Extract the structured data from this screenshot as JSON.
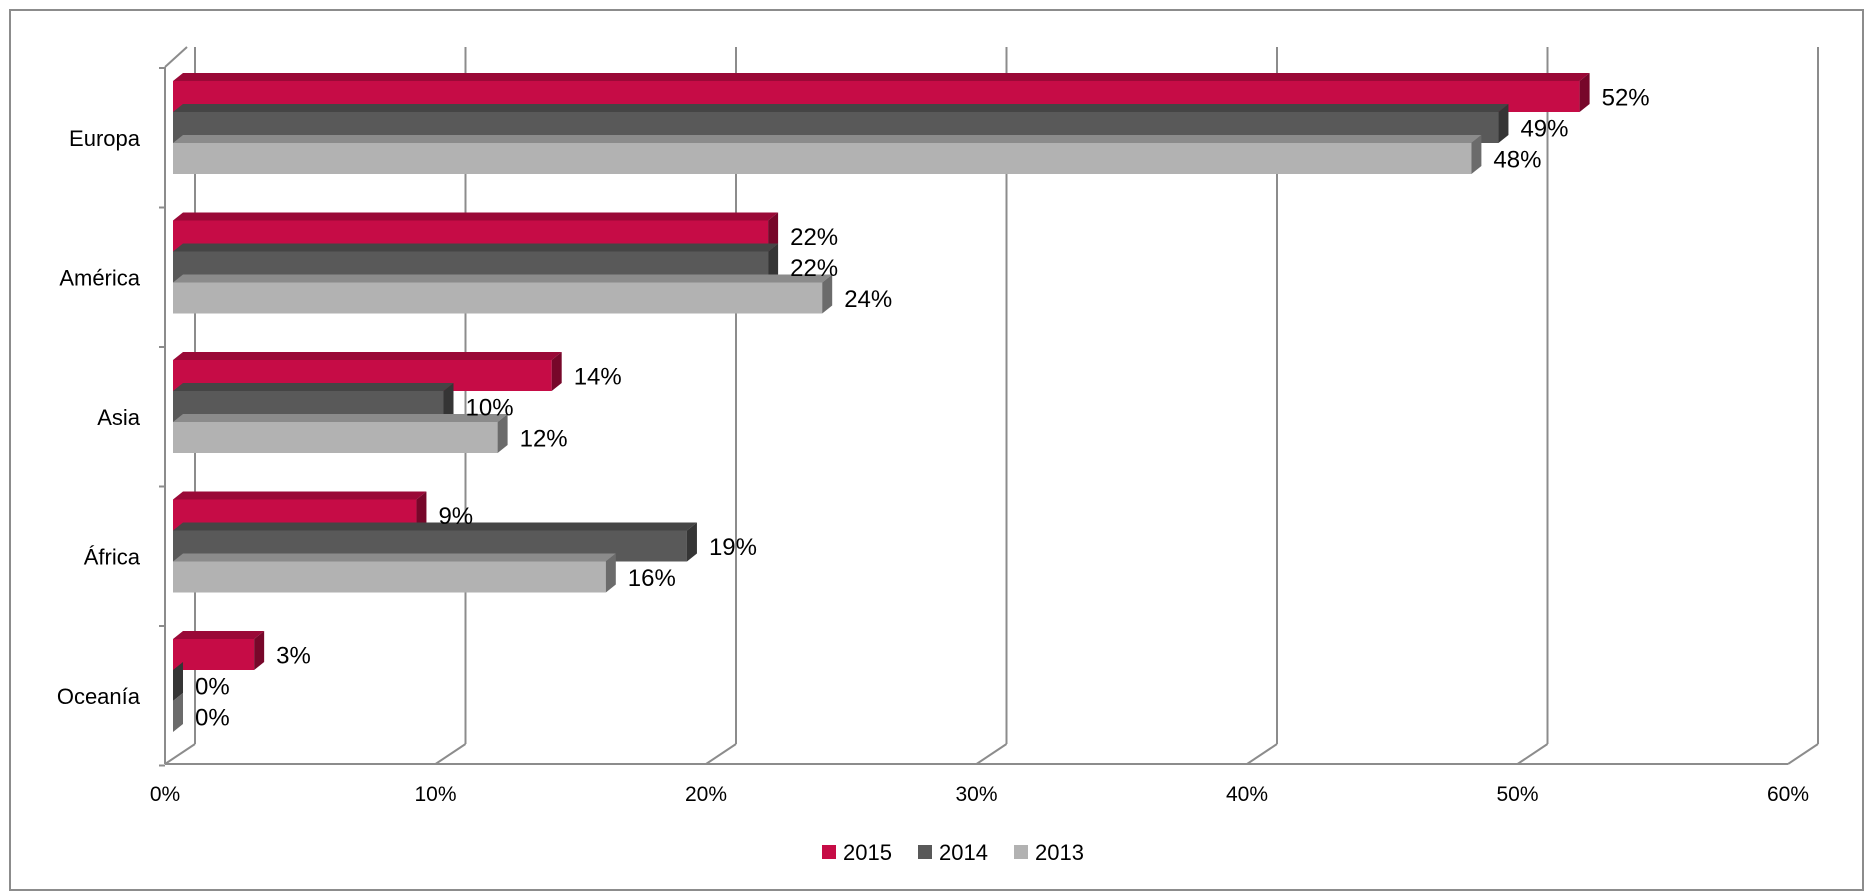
{
  "chart_data": {
    "type": "bar",
    "orientation": "horizontal",
    "style": "3d-clustered",
    "categories": [
      "Europa",
      "América",
      "Asia",
      "África",
      "Oceanía"
    ],
    "series": [
      {
        "name": "2015",
        "color": "#c60c46",
        "values": [
          52,
          22,
          14,
          9,
          3
        ],
        "labels": [
          "52%",
          "22%",
          "14%",
          "9%",
          "3%"
        ]
      },
      {
        "name": "2014",
        "color": "#595959",
        "values": [
          49,
          22,
          10,
          19,
          0
        ],
        "labels": [
          "49%",
          "22%",
          "10%",
          "19%",
          "0%"
        ]
      },
      {
        "name": "2013",
        "color": "#b2b2b2",
        "values": [
          48,
          24,
          12,
          16,
          0
        ],
        "labels": [
          "48%",
          "24%",
          "12%",
          "16%",
          "0%"
        ]
      }
    ],
    "xlim": [
      0,
      60
    ],
    "x_ticks": [
      0,
      10,
      20,
      30,
      40,
      50,
      60
    ],
    "x_tick_labels": [
      "0%",
      "10%",
      "20%",
      "30%",
      "40%",
      "50%",
      "60%"
    ],
    "grid": true,
    "legend_position": "bottom"
  }
}
